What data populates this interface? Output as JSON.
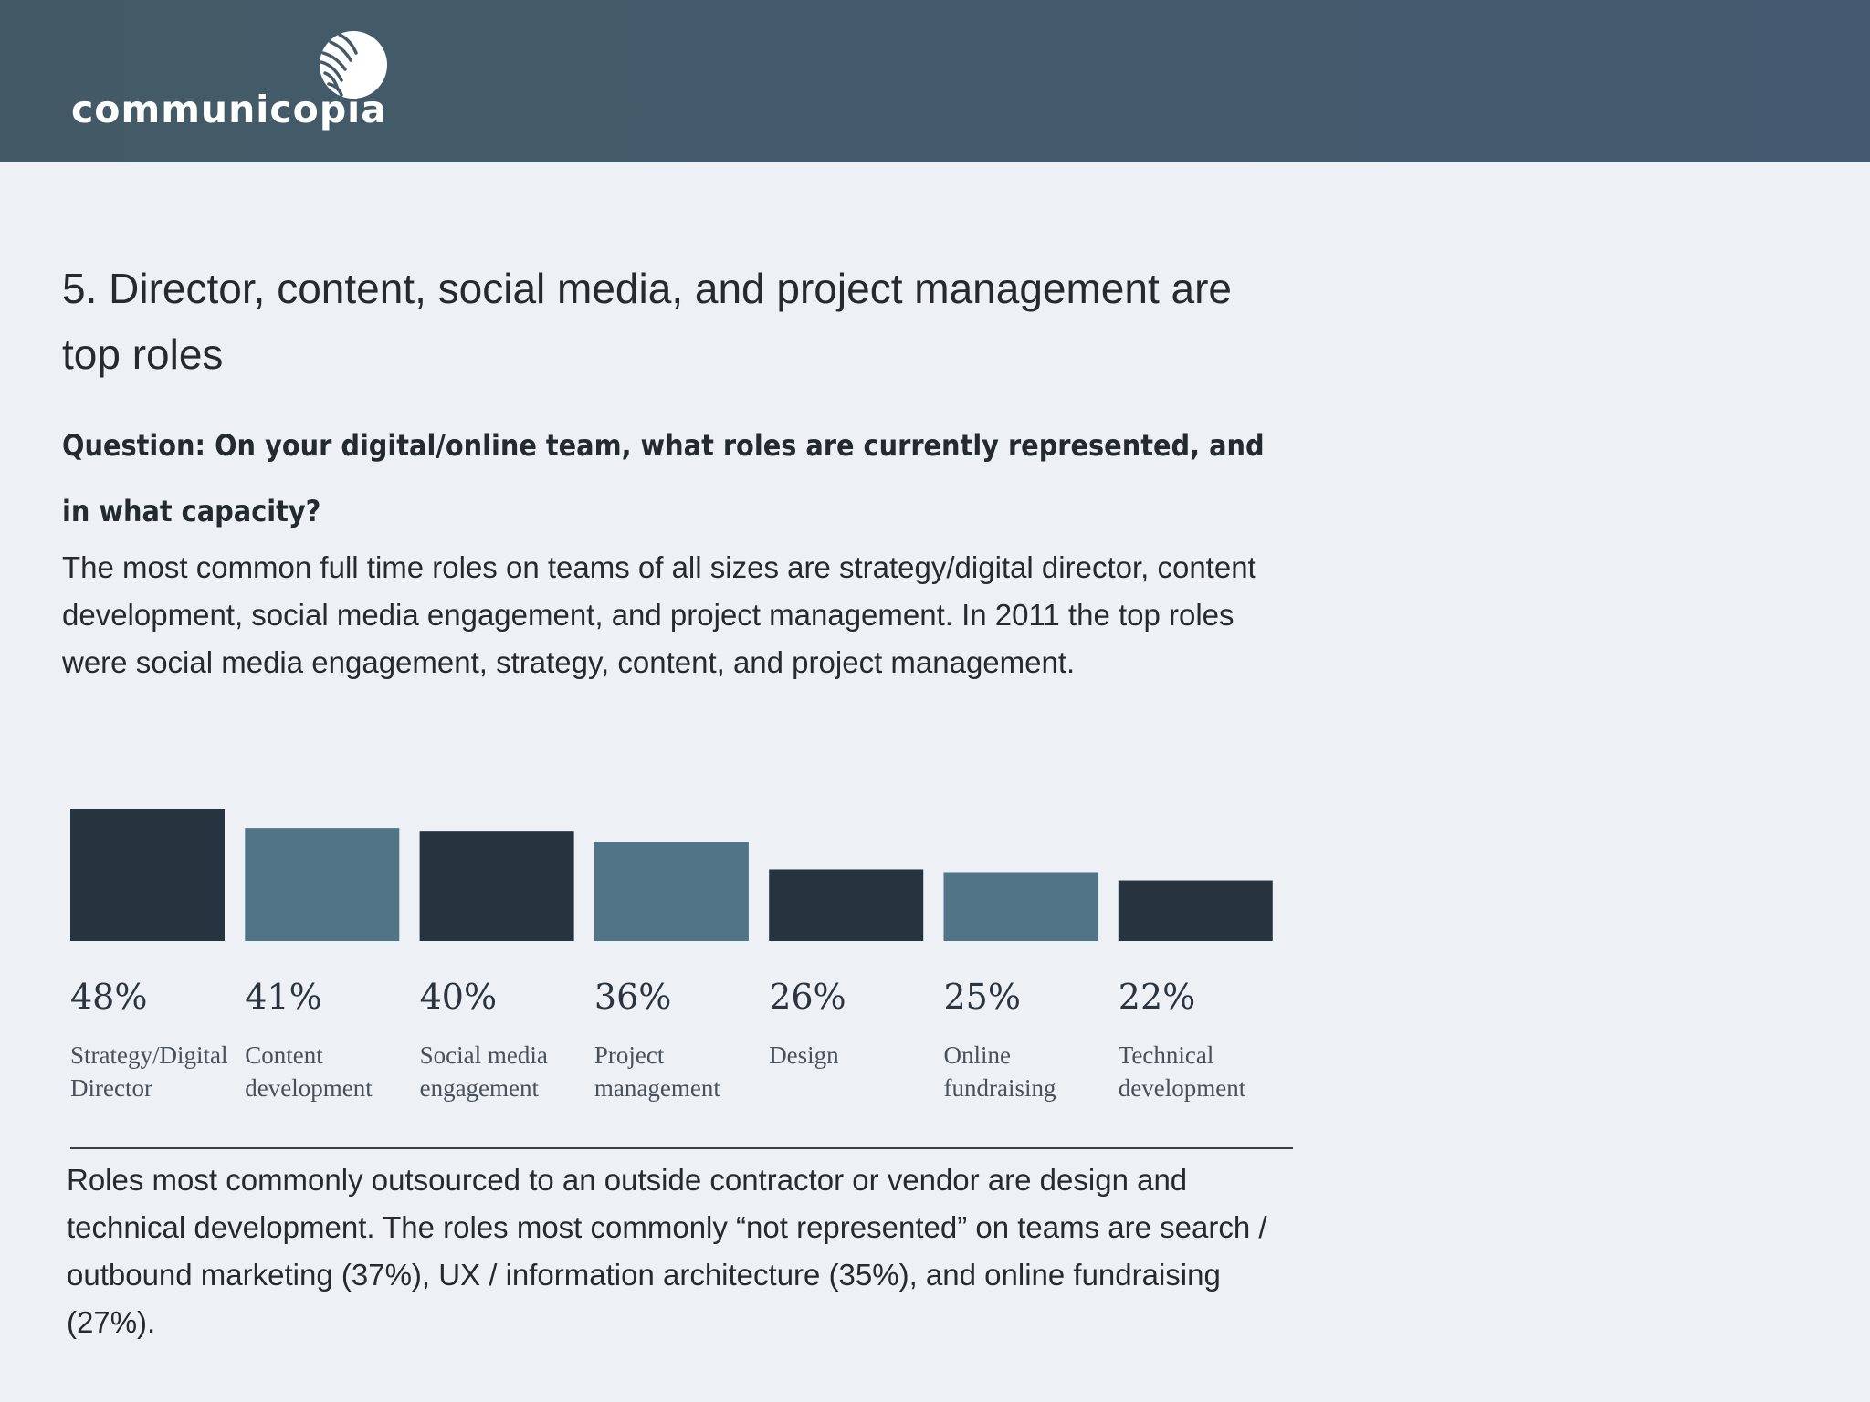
{
  "header": {
    "logo_text": "communicopia",
    "logo_icon": "globe-logo-icon",
    "background_color": "#445a68"
  },
  "title": "5. Director, content, social media, and project management are top roles",
  "question": "Question: On your digital/online team, what roles are currently represented, and in what capacity?",
  "intro": "The most common full time roles on teams of all sizes are strategy/digital director, content development, social media engagement, and project management. In 2011 the top roles were social media engagement, strategy, content, and project management.",
  "chart_data": {
    "type": "bar",
    "title": "",
    "xlabel": "",
    "ylabel": "",
    "ylim": [
      0,
      48
    ],
    "grid": false,
    "unit": "%",
    "categories": [
      [
        "Strategy/Digital",
        "Director"
      ],
      [
        "Content",
        "development"
      ],
      [
        "Social media",
        "engagement"
      ],
      [
        "Project",
        "management"
      ],
      [
        "Design"
      ],
      [
        "Online",
        "fundraising"
      ],
      [
        "Technical",
        "development"
      ]
    ],
    "values": [
      48,
      41,
      40,
      36,
      26,
      25,
      22
    ],
    "value_labels": [
      "48%",
      "41%",
      "40%",
      "36%",
      "26%",
      "25%",
      "22%"
    ],
    "colors": [
      "#27343f",
      "#517587",
      "#27343f",
      "#517587",
      "#27343f",
      "#517587",
      "#27343f"
    ]
  },
  "outro": "Roles most commonly outsourced to an outside contractor or vendor are design and technical development. The roles most commonly “not represented” on teams are search / outbound marketing (37%), UX / information architecture (35%), and online fundraising (27%)."
}
